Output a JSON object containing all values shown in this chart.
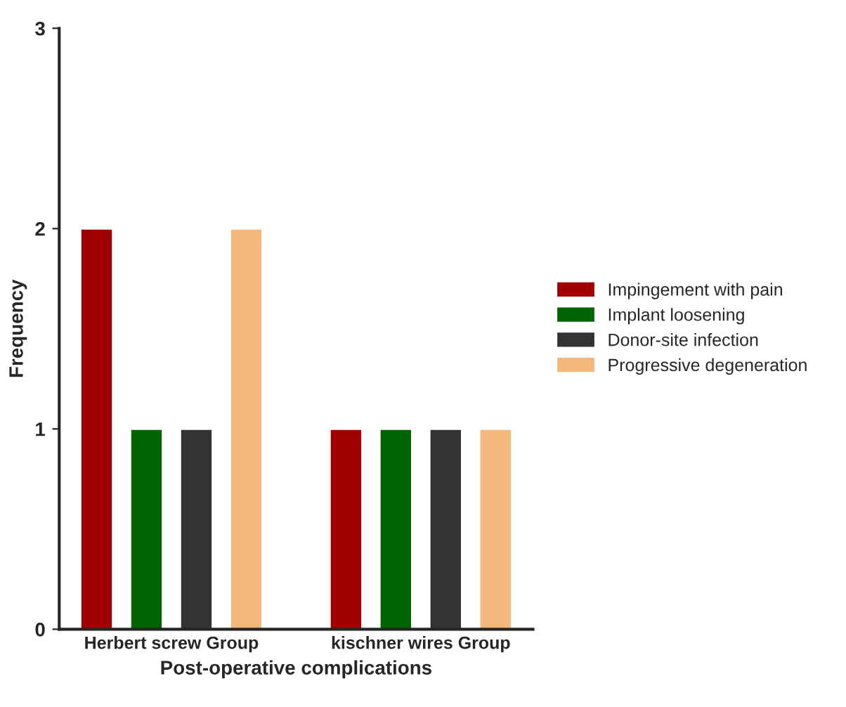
{
  "chart_data": {
    "type": "bar",
    "xlabel": "Post-operative complications",
    "ylabel": "Frequency",
    "categories": [
      "Herbert screw Group",
      "kischner wires Group"
    ],
    "series": [
      {
        "name": "Impingement with pain",
        "color": "#a00000",
        "values": [
          2,
          1
        ]
      },
      {
        "name": "Implant loosening",
        "color": "#006400",
        "values": [
          1,
          1
        ]
      },
      {
        "name": "Donor-site infection",
        "color": "#333333",
        "values": [
          1,
          1
        ]
      },
      {
        "name": "Progressive degeneration",
        "color": "#f4b87c",
        "values": [
          2,
          1
        ]
      }
    ],
    "ylim": [
      0,
      3
    ],
    "yticks": [
      0,
      1,
      2,
      3
    ],
    "grid": false,
    "legend": "right"
  }
}
